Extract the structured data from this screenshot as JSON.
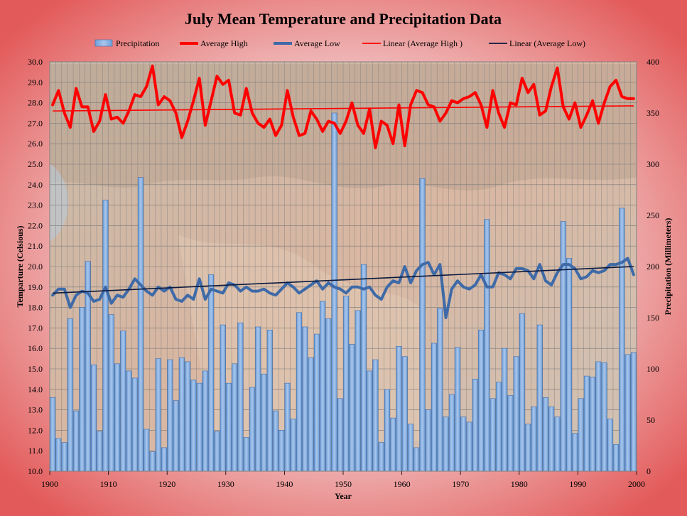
{
  "chart_data": {
    "type": "bar",
    "title": "July Mean Temperature and Precipitation Data",
    "xlabel": "Year",
    "ylabel": "Temparture (Celsious)",
    "y2label": "Precipitation (Millimeters)",
    "xlim": [
      1900,
      2000
    ],
    "ylim": [
      10.0,
      30.0
    ],
    "y2lim": [
      0,
      400
    ],
    "xticks": [
      "1900",
      "1910",
      "1920",
      "1930",
      "1940",
      "1950",
      "1960",
      "1970",
      "1980",
      "1990",
      "2000"
    ],
    "yticks": [
      "10.0",
      "11.0",
      "12.0",
      "13.0",
      "14.0",
      "15.0",
      "16.0",
      "17.0",
      "18.0",
      "19.0",
      "20.0",
      "21.0",
      "22.0",
      "23.0",
      "24.0",
      "25.0",
      "26.0",
      "27.0",
      "28.0",
      "29.0",
      "30.0"
    ],
    "y2ticks": [
      "0",
      "50",
      "100",
      "150",
      "200",
      "250",
      "300",
      "350",
      "400"
    ],
    "grid": true,
    "legend_position": "top",
    "years": [
      1901,
      1902,
      1903,
      1904,
      1905,
      1906,
      1907,
      1908,
      1909,
      1910,
      1911,
      1912,
      1913,
      1914,
      1915,
      1916,
      1917,
      1918,
      1919,
      1920,
      1921,
      1922,
      1923,
      1924,
      1925,
      1926,
      1927,
      1928,
      1929,
      1930,
      1931,
      1932,
      1933,
      1934,
      1935,
      1936,
      1937,
      1938,
      1939,
      1940,
      1941,
      1942,
      1943,
      1944,
      1945,
      1946,
      1947,
      1948,
      1949,
      1950,
      1951,
      1952,
      1953,
      1954,
      1955,
      1956,
      1957,
      1958,
      1959,
      1960,
      1961,
      1962,
      1963,
      1964,
      1965,
      1966,
      1967,
      1968,
      1969,
      1970,
      1971,
      1972,
      1973,
      1974,
      1975,
      1976,
      1977,
      1978,
      1979,
      1980,
      1981,
      1982,
      1983,
      1984,
      1985,
      1986,
      1987,
      1988,
      1989,
      1990,
      1991,
      1992,
      1993,
      1994,
      1995,
      1996,
      1997,
      1998,
      1999,
      2000
    ],
    "series": [
      {
        "name": "Precipitation",
        "type": "bar",
        "axis": "secondary",
        "color": "#8db3e2",
        "values": [
          72,
          32,
          28,
          149,
          59,
          160,
          205,
          104,
          39,
          265,
          153,
          105,
          137,
          98,
          91,
          287,
          41,
          19,
          110,
          23,
          109,
          69,
          111,
          107,
          89,
          86,
          98,
          192,
          39,
          143,
          86,
          105,
          145,
          33,
          82,
          141,
          95,
          138,
          59,
          40,
          86,
          51,
          155,
          141,
          111,
          134,
          166,
          149,
          350,
          71,
          171,
          124,
          157,
          202,
          98,
          109,
          28,
          80,
          52,
          122,
          112,
          46,
          23,
          286,
          60,
          125,
          159,
          53,
          75,
          121,
          53,
          48,
          90,
          138,
          246,
          71,
          87,
          120,
          74,
          112,
          154,
          46,
          63,
          143,
          72,
          63,
          53,
          244,
          208,
          37,
          71,
          93,
          92,
          107,
          106,
          51,
          26,
          257,
          114,
          116
        ]
      },
      {
        "name": "Average High",
        "type": "line",
        "color": "#ff0000",
        "values": [
          27.9,
          28.6,
          27.5,
          26.8,
          28.7,
          27.8,
          27.8,
          26.6,
          27.1,
          28.4,
          27.2,
          27.3,
          27.0,
          27.6,
          28.4,
          28.3,
          28.8,
          29.8,
          27.9,
          28.3,
          28.1,
          27.5,
          26.3,
          27.1,
          28.1,
          29.2,
          26.9,
          28.1,
          29.3,
          28.9,
          29.1,
          27.5,
          27.4,
          28.7,
          27.5,
          27.0,
          26.8,
          27.2,
          26.4,
          26.9,
          28.6,
          27.3,
          26.4,
          26.5,
          27.6,
          27.2,
          26.6,
          27.1,
          27.0,
          26.5,
          27.1,
          28.0,
          26.9,
          26.5,
          27.7,
          25.8,
          27.1,
          26.9,
          26.0,
          27.9,
          25.9,
          27.9,
          28.6,
          28.5,
          27.9,
          27.8,
          27.1,
          27.5,
          28.1,
          28.0,
          28.2,
          28.3,
          28.5,
          27.9,
          26.8,
          28.6,
          27.5,
          26.8,
          28.0,
          27.9,
          29.2,
          28.5,
          28.9,
          27.4,
          27.6,
          28.8,
          29.7,
          27.8,
          27.2,
          28.0,
          26.8,
          27.4,
          28.1,
          27.0,
          28.0,
          28.8,
          29.1,
          28.3,
          28.2,
          28.2
        ]
      },
      {
        "name": "Average Low",
        "type": "line",
        "color": "#3e6aa8",
        "values": [
          18.6,
          18.9,
          18.9,
          18.0,
          18.6,
          18.8,
          18.7,
          18.3,
          18.4,
          19.0,
          18.2,
          18.6,
          18.5,
          18.9,
          19.4,
          19.1,
          18.8,
          18.6,
          19.0,
          18.8,
          19.0,
          18.4,
          18.3,
          18.6,
          18.4,
          19.4,
          18.4,
          18.9,
          18.8,
          18.7,
          19.2,
          19.1,
          18.8,
          19.0,
          18.8,
          18.8,
          18.9,
          18.7,
          18.6,
          18.9,
          19.2,
          19.0,
          18.7,
          18.9,
          19.1,
          19.3,
          18.9,
          19.2,
          19.0,
          18.9,
          18.7,
          19.0,
          19.0,
          18.9,
          19.0,
          18.6,
          18.4,
          19.0,
          19.3,
          19.2,
          20.0,
          19.2,
          19.8,
          20.1,
          20.2,
          19.6,
          20.1,
          17.5,
          18.9,
          19.3,
          19.0,
          18.9,
          19.1,
          19.6,
          19.0,
          19.0,
          19.7,
          19.6,
          19.4,
          19.9,
          19.9,
          19.8,
          19.4,
          20.1,
          19.3,
          19.1,
          19.7,
          20.1,
          20.1,
          19.9,
          19.4,
          19.5,
          19.8,
          19.7,
          19.8,
          20.1,
          20.1,
          20.2,
          20.4,
          19.6
        ]
      },
      {
        "name": "Linear (Average High )",
        "type": "trend",
        "color": "#ff0000",
        "values": [
          27.6,
          27.85
        ]
      },
      {
        "name": "Linear (Average Low)",
        "type": "trend",
        "color": "#0b1a3e",
        "values": [
          18.7,
          20.0
        ]
      }
    ]
  }
}
